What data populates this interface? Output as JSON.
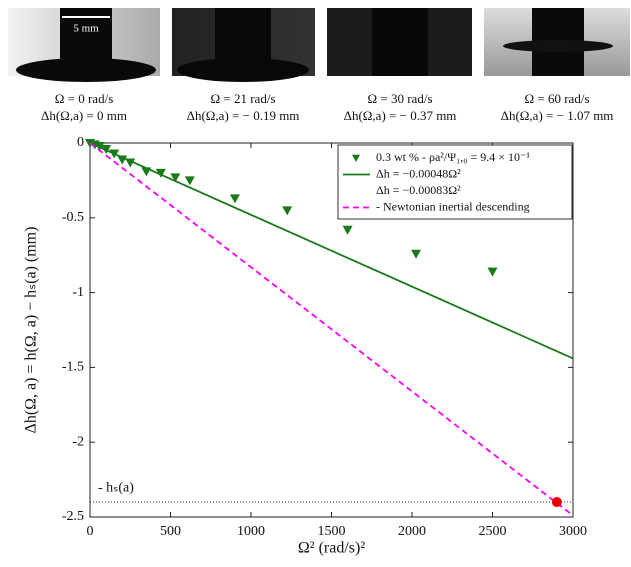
{
  "panels": [
    {
      "omega": "Ω = 0 rad/s",
      "dh": "Δh(Ω,a) = 0 mm"
    },
    {
      "omega": "Ω = 21 rad/s",
      "dh": "Δh(Ω,a) = − 0.19 mm"
    },
    {
      "omega": "Ω = 30 rad/s",
      "dh": "Δh(Ω,a) = − 0.37 mm"
    },
    {
      "omega": "Ω = 60 rad/s",
      "dh": "Δh(Ω,a) = − 1.07 mm"
    }
  ],
  "scale_bar": "5 mm",
  "chart_data": {
    "type": "scatter",
    "x_label": "Ω² (rad/s)²",
    "y_label": "Δh(Ω, a) = h(Ω, a) − hₛ(a) (mm)",
    "xlim": [
      0,
      3000
    ],
    "xticks": [
      0,
      500,
      1000,
      1500,
      2000,
      2500,
      3000
    ],
    "ylim": [
      -2.5,
      0
    ],
    "yticks": [
      0,
      -0.5,
      -1,
      -1.5,
      -2,
      -2.5
    ],
    "series": [
      {
        "name": "0.3 wt % - ρa²/Ψ₁,₀ = 9.4 × 10⁻¹",
        "kind": "scatter",
        "color": "#1a7a1a",
        "x": [
          0,
          30,
          60,
          100,
          150,
          200,
          250,
          350,
          440,
          530,
          620,
          900,
          1225,
          1600,
          2025,
          2500
        ],
        "values": [
          0,
          -0.01,
          -0.02,
          -0.04,
          -0.07,
          -0.11,
          -0.13,
          -0.19,
          -0.2,
          -0.23,
          -0.25,
          -0.37,
          -0.45,
          -0.58,
          -0.74,
          -0.86
        ]
      },
      {
        "name": "Δh = −0.00048Ω²",
        "kind": "line",
        "color": "#1a7a1a",
        "x": [
          0,
          3000
        ],
        "values": [
          0,
          -1.44
        ]
      },
      {
        "name": "- Newtonian inertial descending",
        "kind": "dashed",
        "color": "#ff00ff",
        "x": [
          0,
          3000
        ],
        "values": [
          0,
          -2.49
        ]
      },
      {
        "kind": "point",
        "color": "#ee0000",
        "x": [
          2900
        ],
        "values": [
          -2.4
        ]
      }
    ],
    "legend_extra": "Δh = −0.00083Ω²",
    "hline": {
      "value": -2.4,
      "label": "- hₛ(a)"
    }
  }
}
